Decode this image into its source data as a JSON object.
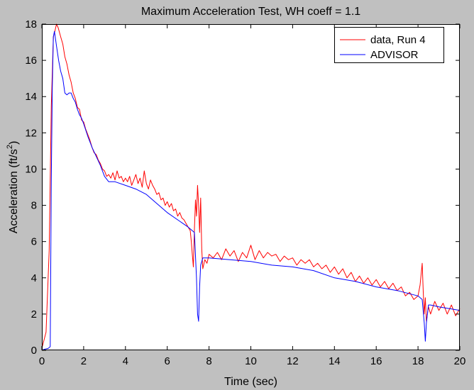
{
  "chart_data": {
    "type": "line",
    "title": "Maximum Acceleration Test, WH coeff = 1.1",
    "xlabel": "Time (sec)",
    "ylabel": "Acceleration (ft/s²)",
    "ylabel_main": "Acceleration (ft/s",
    "ylabel_sup": "2",
    "ylabel_close": ")",
    "xlim": [
      0,
      20
    ],
    "ylim": [
      0,
      18
    ],
    "xticks": [
      0,
      2,
      4,
      6,
      8,
      10,
      12,
      14,
      16,
      18,
      20
    ],
    "yticks": [
      0,
      2,
      4,
      6,
      8,
      10,
      12,
      14,
      16,
      18
    ],
    "legend_position": "top-right",
    "series": [
      {
        "name": "data, Run 4",
        "color": "#ff0000",
        "x": [
          0,
          0.2,
          0.35,
          0.45,
          0.55,
          0.62,
          0.7,
          0.78,
          0.9,
          1.0,
          1.1,
          1.2,
          1.3,
          1.4,
          1.5,
          1.6,
          1.7,
          1.8,
          1.9,
          2.0,
          2.1,
          2.2,
          2.3,
          2.4,
          2.5,
          2.6,
          2.7,
          2.8,
          2.9,
          3.0,
          3.1,
          3.2,
          3.3,
          3.4,
          3.5,
          3.6,
          3.7,
          3.8,
          3.9,
          4.0,
          4.1,
          4.2,
          4.3,
          4.4,
          4.5,
          4.6,
          4.7,
          4.8,
          4.9,
          5.0,
          5.1,
          5.2,
          5.3,
          5.4,
          5.5,
          5.6,
          5.7,
          5.8,
          5.9,
          6.0,
          6.1,
          6.2,
          6.3,
          6.4,
          6.5,
          6.6,
          6.7,
          6.8,
          6.9,
          7.0,
          7.1,
          7.15,
          7.2,
          7.25,
          7.3,
          7.35,
          7.4,
          7.45,
          7.5,
          7.55,
          7.6,
          7.65,
          7.7,
          7.8,
          7.9,
          8.0,
          8.2,
          8.4,
          8.6,
          8.8,
          9.0,
          9.2,
          9.4,
          9.6,
          9.8,
          10.0,
          10.2,
          10.4,
          10.6,
          10.8,
          11.0,
          11.2,
          11.4,
          11.6,
          11.8,
          12.0,
          12.2,
          12.4,
          12.6,
          12.8,
          13.0,
          13.2,
          13.4,
          13.6,
          13.8,
          14.0,
          14.2,
          14.4,
          14.6,
          14.8,
          15.0,
          15.2,
          15.4,
          15.6,
          15.8,
          16.0,
          16.2,
          16.4,
          16.6,
          16.8,
          17.0,
          17.2,
          17.4,
          17.6,
          17.8,
          18.0,
          18.1,
          18.2,
          18.25,
          18.3,
          18.35,
          18.4,
          18.5,
          18.6,
          18.8,
          19.0,
          19.2,
          19.4,
          19.6,
          19.8,
          20.0
        ],
        "y": [
          0.1,
          1.0,
          5.5,
          13.5,
          17.3,
          17.6,
          18.0,
          17.8,
          17.3,
          16.9,
          16.2,
          15.8,
          15.2,
          14.8,
          14.2,
          13.9,
          13.4,
          13.3,
          12.7,
          12.6,
          12.2,
          11.9,
          11.6,
          11.2,
          10.9,
          10.8,
          10.5,
          10.3,
          10.0,
          9.9,
          9.6,
          9.7,
          9.5,
          9.8,
          9.4,
          9.9,
          9.5,
          9.6,
          9.3,
          9.5,
          9.3,
          9.6,
          9.1,
          9.4,
          9.7,
          9.2,
          9.5,
          9.0,
          9.9,
          9.2,
          8.9,
          9.4,
          9.1,
          8.9,
          8.6,
          8.7,
          8.3,
          8.4,
          8.0,
          8.2,
          7.9,
          8.1,
          7.7,
          7.8,
          7.4,
          7.6,
          7.3,
          7.2,
          7.0,
          6.8,
          6.6,
          6.0,
          5.3,
          4.6,
          6.7,
          8.3,
          7.4,
          9.1,
          8.0,
          6.5,
          8.4,
          5.6,
          4.5,
          5.0,
          4.8,
          5.3,
          5.1,
          5.4,
          5.0,
          5.6,
          5.2,
          5.5,
          4.9,
          5.4,
          5.1,
          5.8,
          5.0,
          5.5,
          5.1,
          5.4,
          5.2,
          5.3,
          4.9,
          5.2,
          5.0,
          5.1,
          4.7,
          5.0,
          4.8,
          5.0,
          4.6,
          4.8,
          4.5,
          4.7,
          4.3,
          4.6,
          4.2,
          4.5,
          4.0,
          4.3,
          3.8,
          4.1,
          3.7,
          4.0,
          3.6,
          3.9,
          3.5,
          3.8,
          3.4,
          3.7,
          3.3,
          3.5,
          3.0,
          3.2,
          2.8,
          3.0,
          3.6,
          4.8,
          3.2,
          2.0,
          2.9,
          1.6,
          2.4,
          2.0,
          2.7,
          2.2,
          2.6,
          2.0,
          2.5,
          1.9,
          2.3
        ]
      },
      {
        "name": "ADVISOR",
        "color": "#0000ff",
        "x": [
          0,
          0.1,
          0.3,
          0.4,
          0.45,
          0.5,
          0.55,
          0.6,
          0.7,
          0.8,
          0.9,
          1.0,
          1.1,
          1.2,
          1.3,
          1.4,
          1.5,
          1.6,
          1.7,
          1.8,
          1.9,
          2.0,
          2.2,
          2.4,
          2.6,
          2.8,
          3.0,
          3.2,
          3.5,
          4.0,
          4.5,
          5.0,
          5.5,
          6.0,
          6.5,
          7.0,
          7.3,
          7.4,
          7.45,
          7.5,
          7.55,
          7.6,
          7.7,
          8.0,
          9.0,
          10.0,
          11.0,
          12.0,
          13.0,
          14.0,
          15.0,
          16.0,
          17.0,
          18.0,
          18.2,
          18.3,
          18.35,
          18.4,
          18.5,
          18.6,
          19.0,
          19.5,
          20.0
        ],
        "y": [
          0,
          0.05,
          0.1,
          0.2,
          9.5,
          14.5,
          17.3,
          17.6,
          16.8,
          16.0,
          15.4,
          15.0,
          14.2,
          14.1,
          14.2,
          14.2,
          13.9,
          13.7,
          13.3,
          13.0,
          12.8,
          12.5,
          11.8,
          11.2,
          10.7,
          10.2,
          9.6,
          9.3,
          9.3,
          9.1,
          8.9,
          8.6,
          8.1,
          7.6,
          7.2,
          6.8,
          6.5,
          4.0,
          2.0,
          1.6,
          3.5,
          4.7,
          5.1,
          5.1,
          5.0,
          4.9,
          4.7,
          4.6,
          4.4,
          4.0,
          3.8,
          3.5,
          3.3,
          3.0,
          2.8,
          1.5,
          0.5,
          1.5,
          2.5,
          2.5,
          2.4,
          2.3,
          2.2
        ]
      }
    ]
  }
}
